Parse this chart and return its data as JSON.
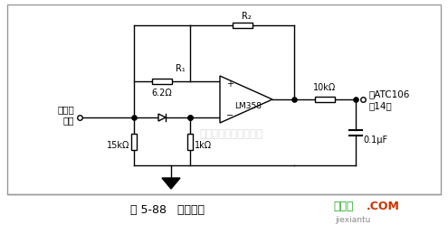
{
  "bg_color": "#ffffff",
  "title": "图 5-88   放大电路",
  "watermark": "杭州将睿科技有限公司",
  "watermark_color": "#d0d0d0",
  "brand_text": "接线图",
  "brand_text2": ".COM",
  "brand_sub": "jiexiantu",
  "left_label1": "接电池",
  "left_label2": "正端",
  "right_label1": "接ATC106",
  "right_label2": "的14脚",
  "right_label3": "0.1μF",
  "r1_label": "R₁",
  "r1_val": "6.2Ω",
  "r2_label": "R₂",
  "r2_val": "10kΩ",
  "r3_val": "15kΩ",
  "r4_val": "1kΩ",
  "opamp_label": "LM358",
  "border_color": "#888888"
}
